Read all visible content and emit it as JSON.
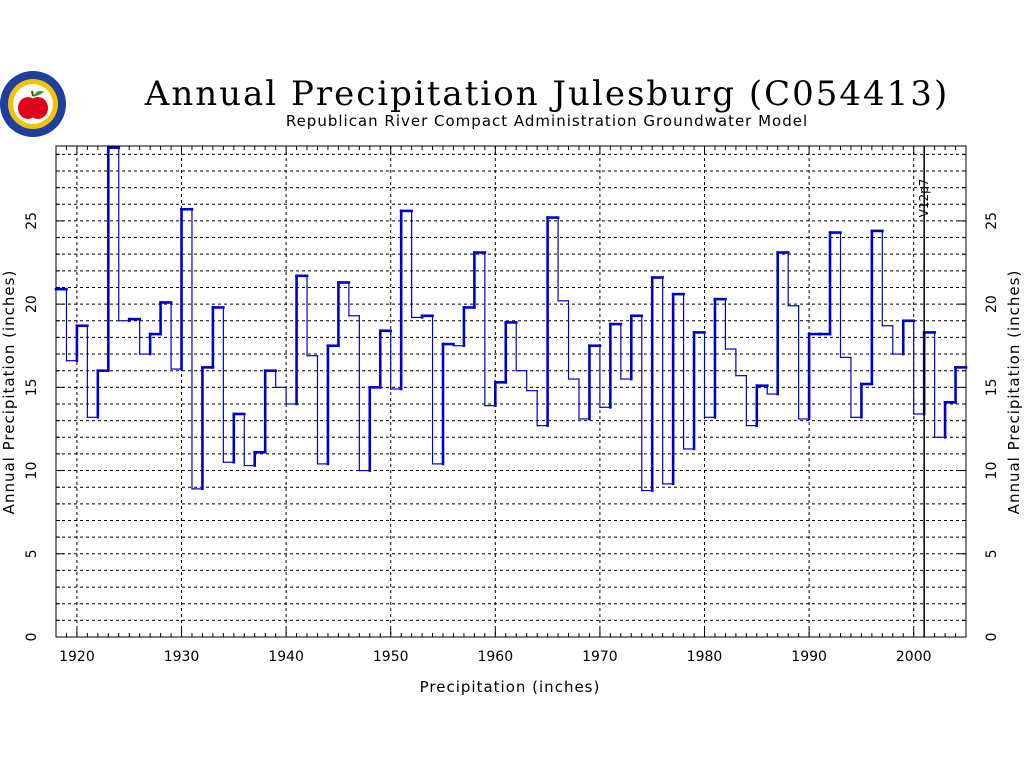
{
  "colors": {
    "series": "#0000cc",
    "grid": "#000000",
    "frame": "#000000",
    "logo_blue": "#1f3f9f",
    "logo_yellow": "#f2c200",
    "logo_red": "#e0001a",
    "logo_green": "#2a9d2a"
  },
  "icons": {
    "logo": "apple-seal-logo"
  },
  "chart_data": {
    "type": "line",
    "step": true,
    "title": "Annual Precipitation Julesburg (C054413)",
    "subtitle": "Republican River Compact Administration Groundwater Model",
    "xlabel": "Precipitation (inches)",
    "ylabel": "Annual Precipitation (inches)",
    "ylabel_right": "Annual Precipitation (inches)",
    "xlim": [
      1918,
      2005
    ],
    "ylim": [
      0,
      29.5
    ],
    "grid": true,
    "x_ticks": [
      1920,
      1930,
      1940,
      1950,
      1960,
      1970,
      1980,
      1990,
      2000
    ],
    "y_ticks": [
      0,
      5,
      10,
      15,
      20,
      25
    ],
    "annotation": {
      "text": "V12p7",
      "x": 2001
    },
    "series": [
      {
        "x": [
          1918,
          1919,
          1920,
          1921,
          1922,
          1923,
          1924,
          1925,
          1926,
          1927,
          1928,
          1929,
          1930,
          1931,
          1932,
          1933,
          1934,
          1935,
          1936,
          1937,
          1938,
          1939,
          1940,
          1941,
          1942,
          1943,
          1944,
          1945,
          1946,
          1947,
          1948,
          1949,
          1950,
          1951,
          1952,
          1953,
          1954,
          1955,
          1956,
          1957,
          1958,
          1959,
          1960,
          1961,
          1962,
          1963,
          1964,
          1965,
          1966,
          1967,
          1968,
          1969,
          1970,
          1971,
          1972,
          1973,
          1974,
          1975,
          1976,
          1977,
          1978,
          1979,
          1980,
          1981,
          1982,
          1983,
          1984,
          1985,
          1986,
          1987,
          1988,
          1989,
          1990,
          1991,
          1992,
          1993,
          1994,
          1995,
          1996,
          1997,
          1998,
          1999,
          2000,
          2001,
          2002,
          2003,
          2004
        ],
        "values": [
          20.9,
          16.6,
          18.7,
          13.2,
          16.0,
          29.4,
          19.0,
          19.1,
          17.0,
          18.2,
          20.1,
          16.1,
          25.7,
          8.9,
          16.2,
          19.8,
          10.5,
          13.4,
          10.3,
          11.1,
          16.0,
          15.0,
          14.0,
          21.7,
          16.9,
          10.4,
          17.5,
          21.3,
          19.3,
          10.0,
          15.0,
          18.4,
          14.9,
          25.6,
          19.2,
          19.3,
          10.4,
          17.6,
          17.5,
          19.8,
          23.1,
          13.9,
          15.3,
          18.9,
          16.0,
          14.8,
          12.7,
          25.2,
          20.2,
          15.5,
          13.1,
          17.5,
          13.8,
          18.8,
          15.5,
          19.3,
          8.8,
          21.6,
          9.2,
          20.6,
          11.3,
          18.3,
          13.2,
          20.3,
          17.3,
          15.7,
          12.7,
          15.1,
          14.6,
          23.1,
          19.9,
          13.1,
          18.2,
          18.2,
          24.3,
          16.8,
          13.2,
          15.2,
          24.4,
          18.7,
          17.0,
          19.0,
          13.4,
          18.3,
          12.0,
          14.1,
          16.2
        ]
      }
    ]
  }
}
